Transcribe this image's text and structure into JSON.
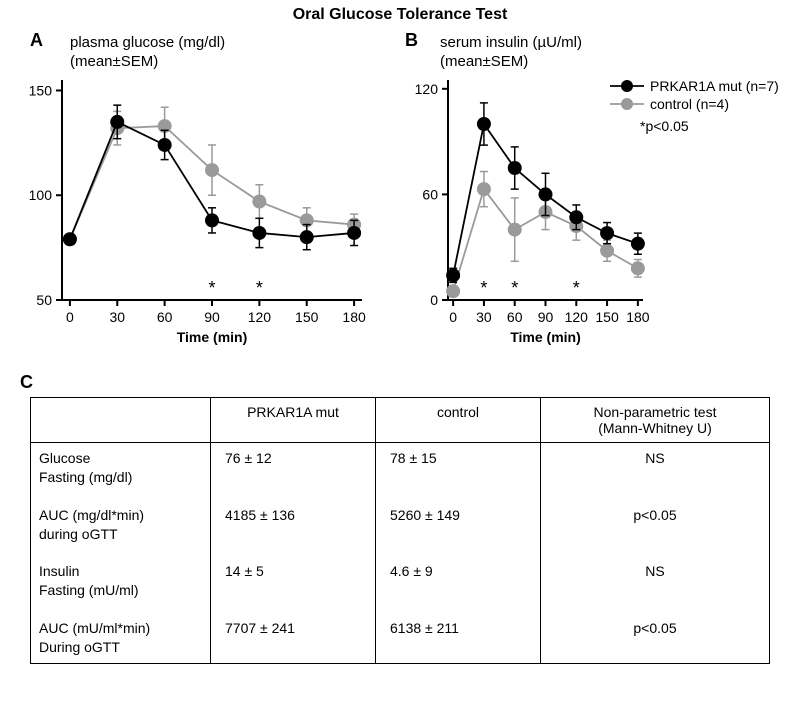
{
  "title": "Oral Glucose Tolerance Test",
  "panelA": {
    "label": "A",
    "subtitle_line1": "plasma glucose (mg/dl)",
    "subtitle_line2": "(mean±SEM)",
    "type": "line",
    "x": [
      0,
      30,
      60,
      90,
      120,
      150,
      180
    ],
    "xlim": [
      -5,
      185
    ],
    "ylim": [
      50,
      155
    ],
    "xticks": [
      0,
      30,
      60,
      90,
      120,
      150,
      180
    ],
    "yticks": [
      50,
      100,
      150
    ],
    "series": [
      {
        "name": "PRKAR1A mut",
        "color": "#000000",
        "marker": "circle",
        "marker_size": 7,
        "line_width": 1.8,
        "y": [
          79,
          135,
          124,
          88,
          82,
          80,
          82
        ],
        "err": [
          0,
          8,
          7,
          6,
          7,
          6,
          6
        ]
      },
      {
        "name": "control",
        "color": "#9a9a9a",
        "marker": "circle",
        "marker_size": 7,
        "line_width": 1.8,
        "y": [
          79,
          132,
          133,
          112,
          97,
          88,
          86
        ],
        "err": [
          0,
          8,
          9,
          12,
          8,
          6,
          5
        ]
      }
    ],
    "sig_marks": [
      90,
      120
    ],
    "xlabel": "Time (min)"
  },
  "panelB": {
    "label": "B",
    "subtitle_line1": "serum insulin (µU/ml)",
    "subtitle_line2": "(mean±SEM)",
    "type": "line",
    "x": [
      0,
      30,
      60,
      90,
      120,
      150,
      180
    ],
    "xlim": [
      -5,
      185
    ],
    "ylim": [
      0,
      125
    ],
    "xticks": [
      0,
      30,
      60,
      90,
      120,
      150,
      180
    ],
    "yticks": [
      0,
      60,
      120
    ],
    "series": [
      {
        "name": "PRKAR1A mut",
        "color": "#000000",
        "marker": "circle",
        "marker_size": 7,
        "line_width": 1.8,
        "y": [
          14,
          100,
          75,
          60,
          47,
          38,
          32
        ],
        "err": [
          4,
          12,
          12,
          12,
          7,
          6,
          6
        ]
      },
      {
        "name": "control",
        "color": "#9a9a9a",
        "marker": "circle",
        "marker_size": 7,
        "line_width": 1.8,
        "y": [
          5,
          63,
          40,
          50,
          42,
          28,
          18
        ],
        "err": [
          3,
          10,
          18,
          10,
          8,
          6,
          5
        ]
      }
    ],
    "sig_marks": [
      30,
      60,
      120
    ],
    "xlabel": "Time (min)"
  },
  "legend": {
    "items": [
      {
        "label": "PRKAR1A mut (n=7)",
        "color": "#000000"
      },
      {
        "label": "control (n=4)",
        "color": "#9a9a9a"
      }
    ],
    "sig_note": "*p<0.05"
  },
  "panelC": {
    "label": "C",
    "columns": [
      "",
      "PRKAR1A mut",
      "control",
      "Non-parametric test\n(Mann-Whitney U)"
    ],
    "rows": [
      {
        "label_l1": "Glucose",
        "label_l2": "Fasting (mg/dl)",
        "mut": "76 ± 12",
        "ctrl": "78 ± 15",
        "test": "NS",
        "spacer_before": false
      },
      {
        "label_l1": "AUC (mg/dl*min)",
        "label_l2": "during oGTT",
        "mut": "4185 ± 136",
        "ctrl": "5260 ± 149",
        "test": "p<0.05",
        "spacer_before": true
      },
      {
        "label_l1": "Insulin",
        "label_l2": "Fasting (mU/ml)",
        "mut": "14 ± 5",
        "ctrl": "4.6 ± 9",
        "test": "NS",
        "spacer_before": true
      },
      {
        "label_l1": "AUC (mU/ml*min)",
        "label_l2": "During oGTT",
        "mut": "7707 ± 241",
        "ctrl": "6138 ± 211",
        "test": "p<0.05",
        "spacer_before": true
      }
    ]
  },
  "colors": {
    "axis": "#000000",
    "bg": "#ffffff"
  }
}
